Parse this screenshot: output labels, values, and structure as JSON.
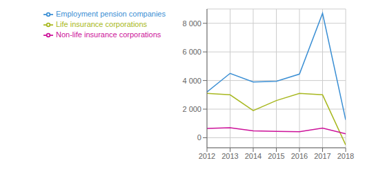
{
  "chart_data": {
    "type": "line",
    "x": [
      2012,
      2013,
      2014,
      2015,
      2016,
      2017,
      2018
    ],
    "series": [
      {
        "name": "Employment pension companies",
        "color": "#3b8fd4",
        "values": [
          3200,
          4500,
          3900,
          3950,
          4450,
          8700,
          1250
        ]
      },
      {
        "name": "Life insurance corporations",
        "color": "#a8b820",
        "values": [
          3100,
          3000,
          1900,
          2600,
          3100,
          3000,
          -500
        ]
      },
      {
        "name": "Non-life insurance corporations",
        "color": "#cc1199",
        "values": [
          650,
          700,
          480,
          450,
          420,
          680,
          280
        ]
      }
    ],
    "xlim": [
      2012,
      2018
    ],
    "xticks": [
      2012,
      2013,
      2014,
      2015,
      2016,
      2017,
      2018
    ],
    "ylim": [
      -700,
      9000
    ],
    "yticks": [
      0,
      {
        "value": 2000,
        "label": "2 000"
      },
      {
        "value": 4000,
        "label": "4 000"
      },
      {
        "value": 6000,
        "label": "6 000"
      },
      {
        "value": 8000,
        "label": "8 000"
      }
    ],
    "grid": true,
    "legend": "upper left"
  }
}
